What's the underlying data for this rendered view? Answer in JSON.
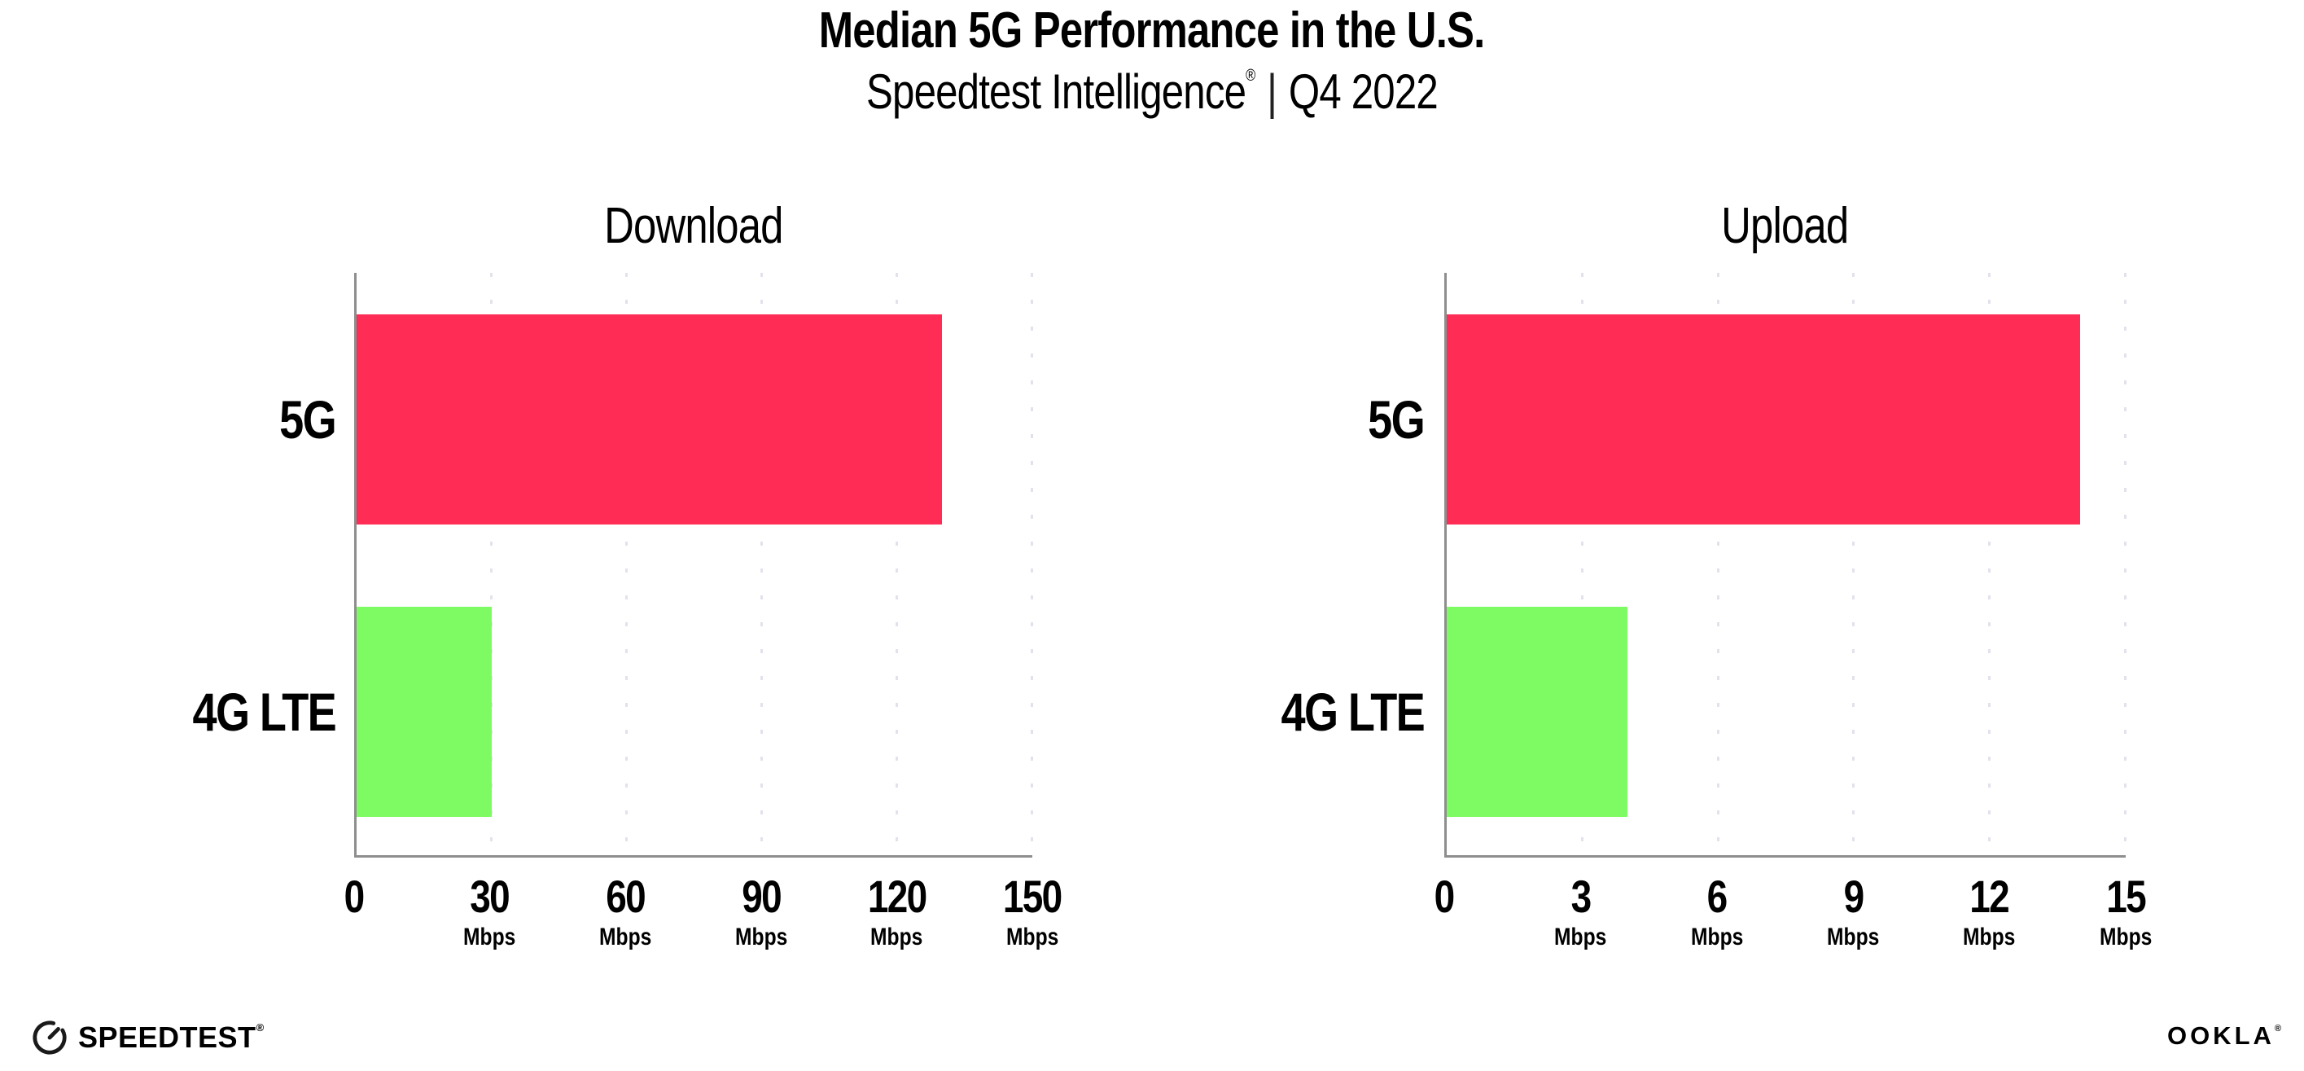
{
  "header": {
    "title": "Median 5G Performance in the U.S.",
    "subtitle": {
      "brand": "Speedtest Intelligence",
      "registered_mark": "®",
      "separator": "|",
      "period": "Q4 2022"
    }
  },
  "chart_data": [
    {
      "type": "bar",
      "orientation": "horizontal",
      "title": "Download",
      "categories": [
        "5G",
        "4G LTE"
      ],
      "values": [
        130,
        30
      ],
      "unit": "Mbps",
      "xlim": [
        0,
        150
      ],
      "xticks": [
        0,
        30,
        60,
        90,
        120,
        150
      ],
      "xtick_unit": "Mbps",
      "bar_colors": [
        "#ff2d55",
        "#7efb63"
      ],
      "grid": "vertical-dotted",
      "legend": "none"
    },
    {
      "type": "bar",
      "orientation": "horizontal",
      "title": "Upload",
      "categories": [
        "5G",
        "4G LTE"
      ],
      "values": [
        14,
        4
      ],
      "unit": "Mbps",
      "xlim": [
        0,
        15
      ],
      "xticks": [
        0,
        3,
        6,
        9,
        12,
        15
      ],
      "xtick_unit": "Mbps",
      "bar_colors": [
        "#ff2d55",
        "#7efb63"
      ],
      "grid": "vertical-dotted",
      "legend": "none"
    }
  ],
  "footer": {
    "left_brand": "SPEEDTEST",
    "left_brand_mark": "®",
    "right_brand": "OOKLA",
    "right_brand_mark": "®"
  },
  "colors": {
    "bar_5g": "#ff2d55",
    "bar_4g_lte": "#7efb63",
    "axis": "#8e8e8e",
    "gridline": "#e2e2ec",
    "text": "#000000",
    "background": "#ffffff"
  }
}
